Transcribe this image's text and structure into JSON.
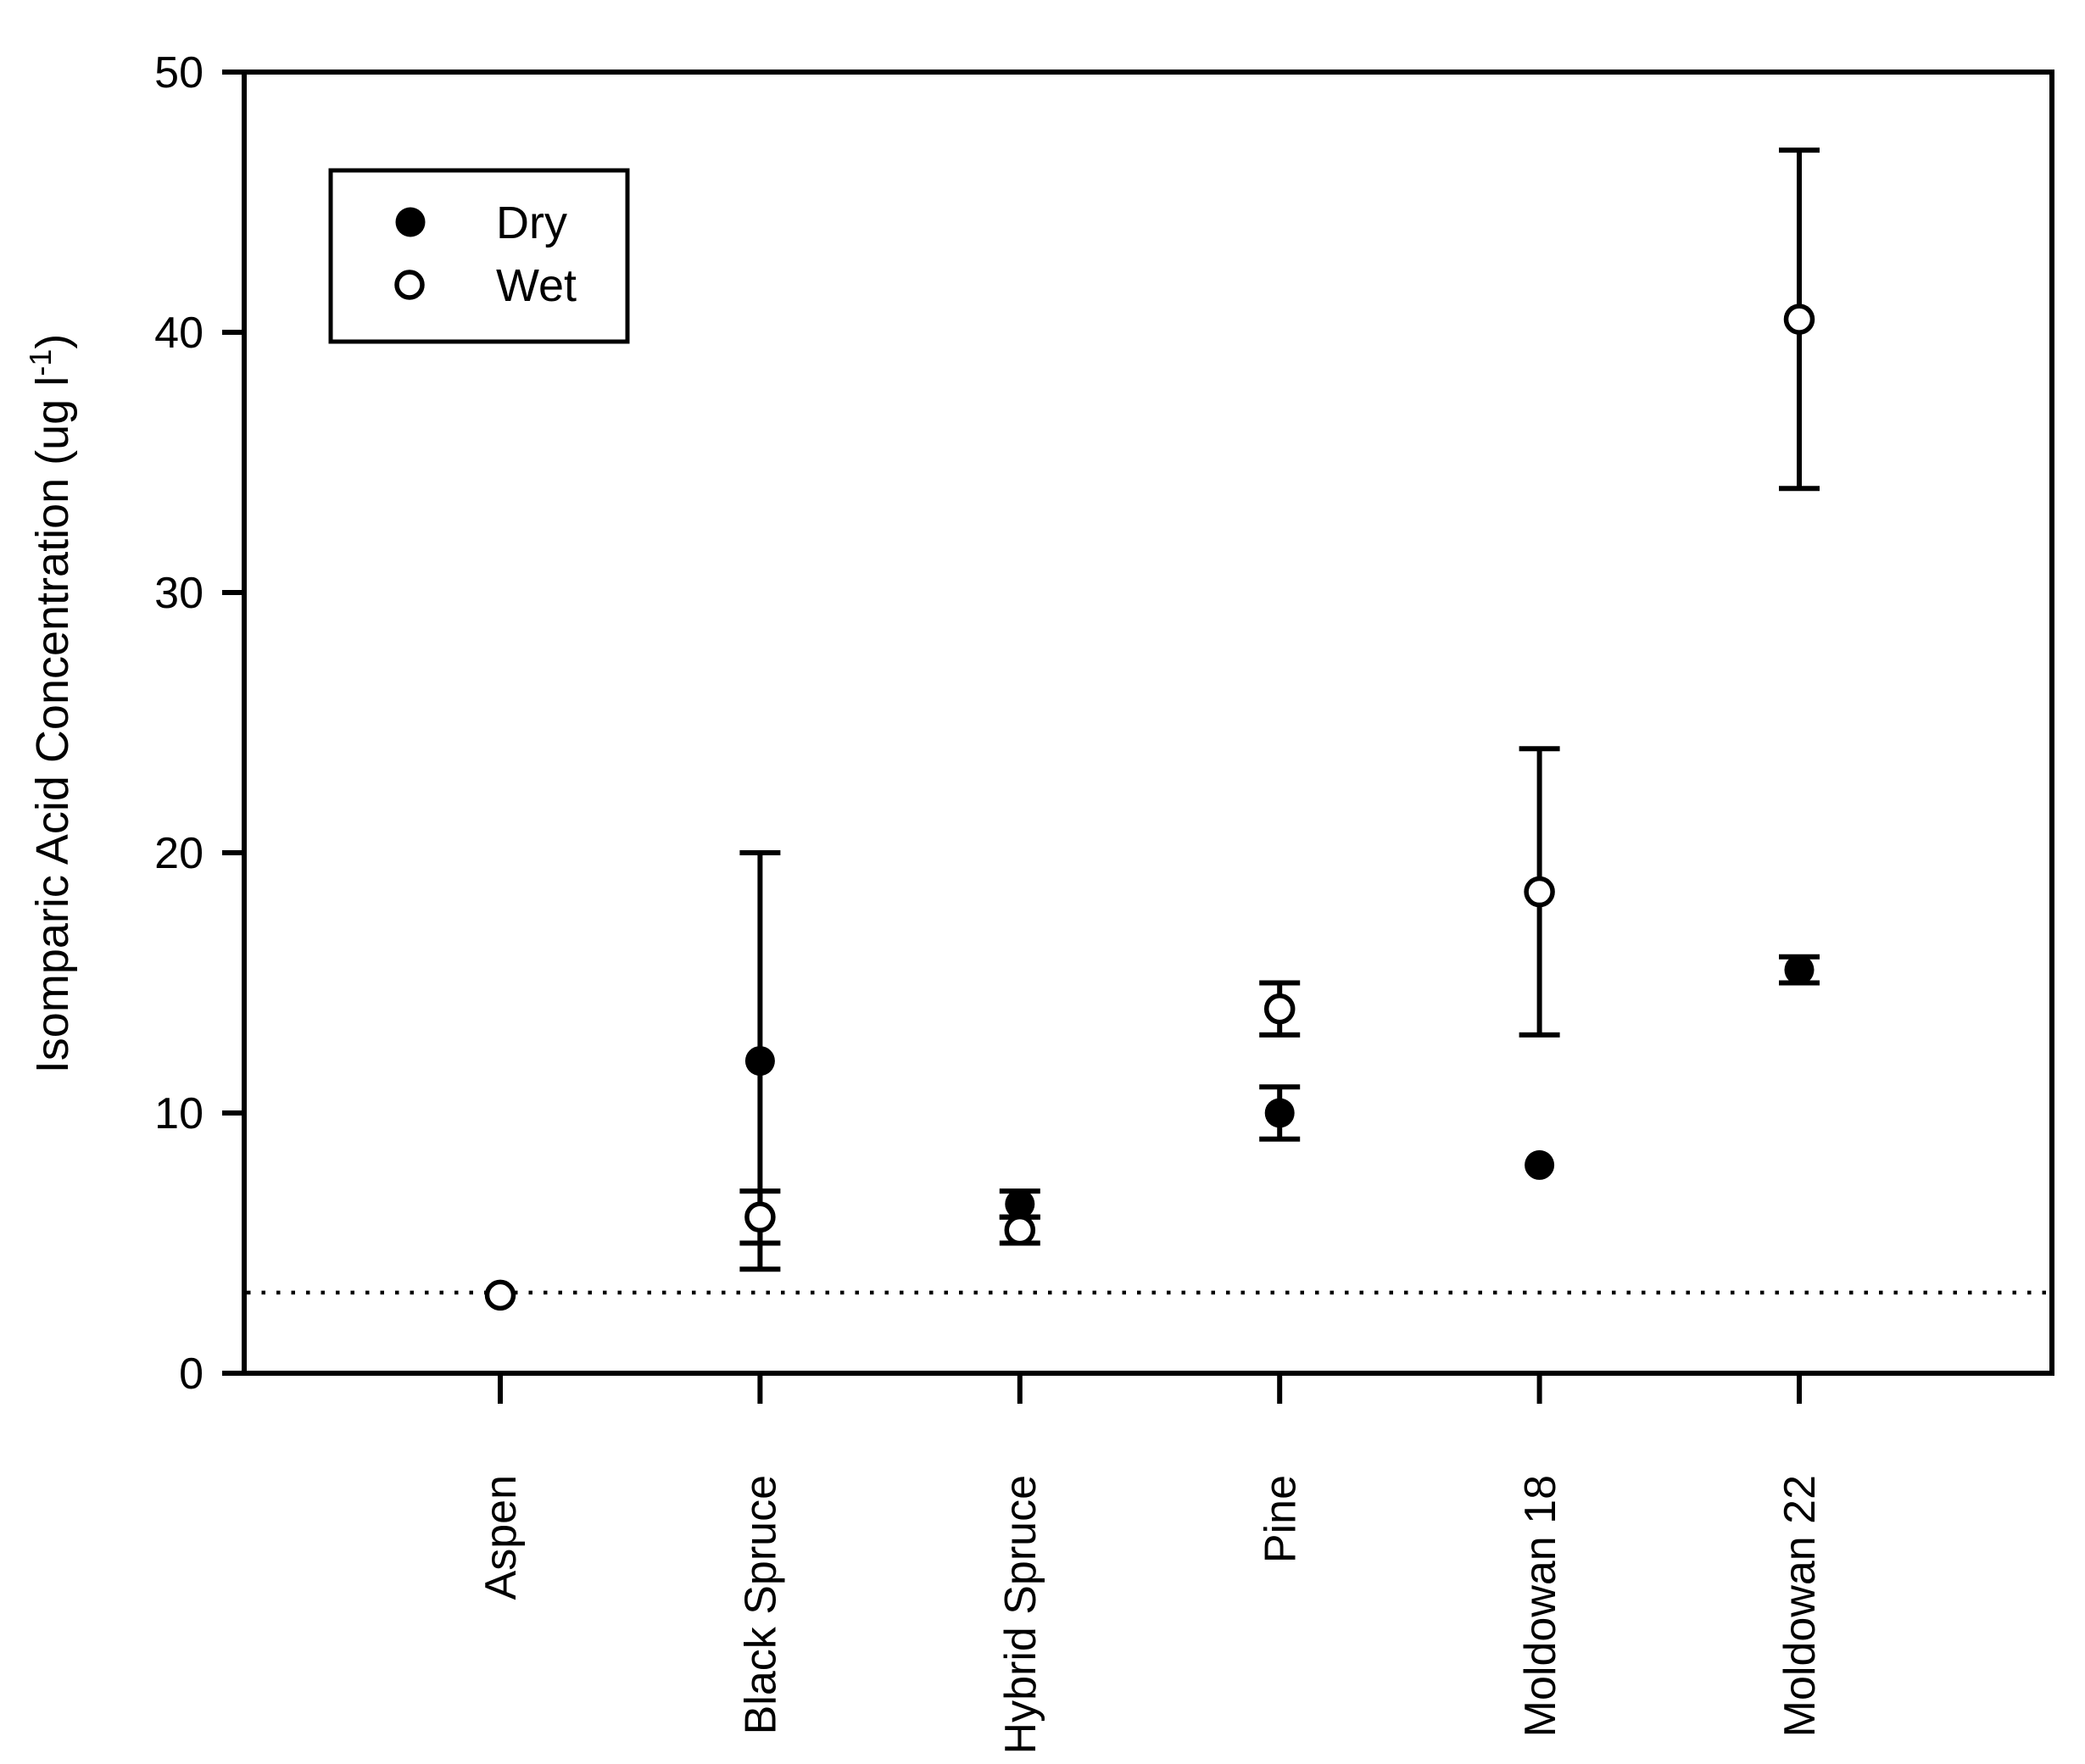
{
  "chart_data": {
    "type": "scatter",
    "title": "",
    "xlabel": "",
    "ylabel": "Isomparic Acid Concentration (ug l⁻¹)",
    "ylim": [
      0,
      50
    ],
    "yticks": [
      0,
      10,
      20,
      30,
      40,
      50
    ],
    "grid": false,
    "background": "#ffffff",
    "marker_color": "#000000",
    "categories": [
      "Aspen",
      "Black Spruce",
      "Hybrid Spruce",
      "Pine",
      "Moldowan 18",
      "Moldowan 22"
    ],
    "series": [
      {
        "name": "Dry",
        "marker": "filled-circle",
        "values": [
          null,
          12,
          6.5,
          10,
          8,
          15.5
        ],
        "err_low": [
          null,
          8,
          0.5,
          1,
          0,
          0.5
        ],
        "err_high": [
          null,
          8,
          0.5,
          1,
          0,
          0.5
        ]
      },
      {
        "name": "Wet",
        "marker": "open-circle",
        "values": [
          3,
          6,
          5.5,
          14,
          18.5,
          40.5
        ],
        "err_low": [
          0,
          1,
          0.5,
          1,
          5.5,
          6.5
        ],
        "err_high": [
          0,
          1,
          0.5,
          1,
          5.5,
          6.5
        ]
      }
    ],
    "reference_line": {
      "y": 3.1,
      "style": "dotted"
    },
    "legend": {
      "position": "top-left",
      "entries": [
        {
          "label": "Dry",
          "marker": "filled-circle"
        },
        {
          "label": "Wet",
          "marker": "open-circle"
        }
      ]
    }
  }
}
